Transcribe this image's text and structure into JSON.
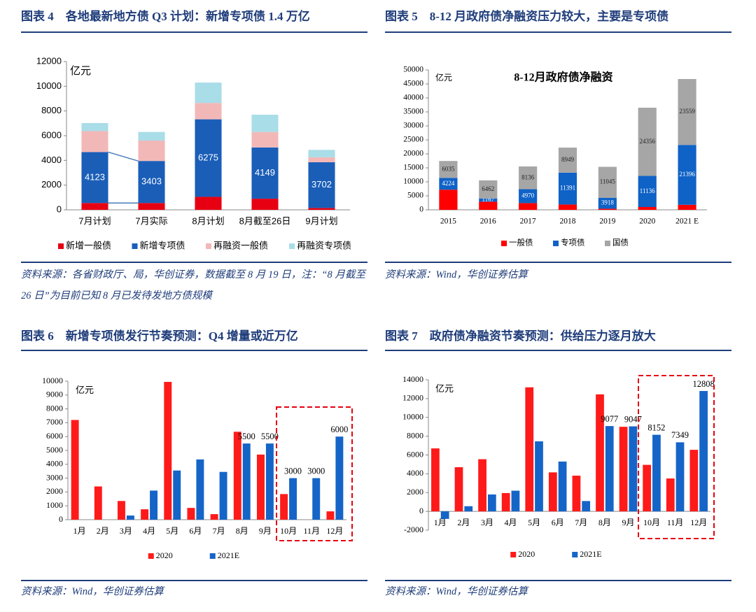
{
  "chart_data": [
    {
      "type": "bar",
      "stacked": true,
      "caption": "图表 4　各地最新地方债 Q3 计划：新增专项债 1.4 万亿",
      "source": "资料来源：各省财政厅、局，华创证券，数据截至 8 月 19 日，注：“8 月截至 26 日”为目前已知 8 月已发待发地方债规模",
      "unit": "亿元",
      "categories": [
        "7月计划",
        "7月实际",
        "8月计划",
        "8月截至26日",
        "9月计划"
      ],
      "series": [
        {
          "name": "新增一般债",
          "color": "#e60012",
          "values": [
            550,
            550,
            1050,
            900,
            150
          ]
        },
        {
          "name": "新增专项债",
          "color": "#1a5eb8",
          "values": [
            4123,
            3403,
            6275,
            4149,
            3702
          ],
          "show_labels": true
        },
        {
          "name": "再融资一般债",
          "color": "#f2b8b8",
          "values": [
            1700,
            1650,
            1325,
            1250,
            400
          ]
        },
        {
          "name": "再融资专项债",
          "color": "#a9dde8",
          "values": [
            650,
            700,
            1650,
            1400,
            600
          ]
        }
      ],
      "ylim": [
        0,
        12000
      ],
      "yticks": [
        0,
        2000,
        4000,
        6000,
        8000,
        10000,
        12000
      ]
    },
    {
      "type": "bar",
      "stacked": true,
      "caption": "图表 5　8-12 月政府债净融资压力较大，主要是专项债",
      "source": "资料来源：Wind，华创证券估算",
      "unit": "亿元",
      "title": "8-12月政府债净融资",
      "categories": [
        "2015",
        "2016",
        "2017",
        "2018",
        "2019",
        "2020",
        "2021 E"
      ],
      "series": [
        {
          "name": "一般债",
          "color": "#ff0000",
          "values": [
            7200,
            2900,
            2400,
            1900,
            400,
            1000,
            1800
          ]
        },
        {
          "name": "专项债",
          "color": "#0f62c6",
          "values": [
            4224,
            1167,
            4970,
            11391,
            3918,
            11136,
            21396
          ],
          "show_labels": true
        },
        {
          "name": "国债",
          "color": "#a6a6a6",
          "values": [
            6035,
            6462,
            8136,
            8949,
            11045,
            24356,
            23559
          ],
          "show_labels": true
        }
      ],
      "ylim": [
        0,
        50000
      ],
      "yticks": [
        0,
        5000,
        10000,
        15000,
        20000,
        25000,
        30000,
        35000,
        40000,
        45000,
        50000
      ]
    },
    {
      "type": "bar",
      "stacked": false,
      "caption": "图表 6　新增专项债发行节奏预测：Q4 增量或近万亿",
      "source": "资料来源：Wind，华创证券估算",
      "unit": "亿元",
      "categories": [
        "1月",
        "2月",
        "3月",
        "4月",
        "5月",
        "6月",
        "7月",
        "8月",
        "9月",
        "10月",
        "11月",
        "12月"
      ],
      "series": [
        {
          "name": "2020",
          "color": "#ff1a1a",
          "values": [
            7200,
            2400,
            1350,
            750,
            9950,
            850,
            400,
            6350,
            4700,
            1850,
            0,
            600
          ]
        },
        {
          "name": "2021E",
          "color": "#1565c8",
          "values": [
            0,
            0,
            300,
            2100,
            3550,
            4350,
            3450,
            5500,
            5500,
            3000,
            3000,
            6000
          ],
          "value_labels": [
            null,
            null,
            null,
            null,
            null,
            null,
            null,
            "5500",
            "5500",
            "3000",
            "3000",
            "6000"
          ]
        }
      ],
      "ylim": [
        0,
        10000
      ],
      "yticks": [
        0,
        1000,
        2000,
        3000,
        4000,
        5000,
        6000,
        7000,
        8000,
        9000,
        10000
      ]
    },
    {
      "type": "bar",
      "stacked": false,
      "caption": "图表 7　政府债净融资节奏预测：供给压力逐月放大",
      "source": "资料来源：Wind，华创证券估算",
      "unit": "亿元",
      "categories": [
        "1月",
        "2月",
        "3月",
        "4月",
        "5月",
        "6月",
        "7月",
        "8月",
        "9月",
        "10月",
        "11月",
        "12月"
      ],
      "series": [
        {
          "name": "2020",
          "color": "#ff1a1a",
          "values": [
            6700,
            4700,
            5550,
            1950,
            13200,
            4150,
            3800,
            12450,
            9000,
            4950,
            3500,
            6550
          ]
        },
        {
          "name": "2021E",
          "color": "#1565c8",
          "values": [
            -800,
            550,
            1800,
            2200,
            7450,
            5300,
            1100,
            9077,
            9047,
            8152,
            7349,
            12808
          ],
          "value_labels": [
            null,
            null,
            null,
            null,
            null,
            null,
            null,
            "9077",
            "9047",
            "8152",
            "7349",
            "12808"
          ]
        }
      ],
      "ylim": [
        -2000,
        14000
      ],
      "yticks": [
        -2000,
        0,
        2000,
        4000,
        6000,
        8000,
        10000,
        12000,
        14000
      ]
    }
  ]
}
